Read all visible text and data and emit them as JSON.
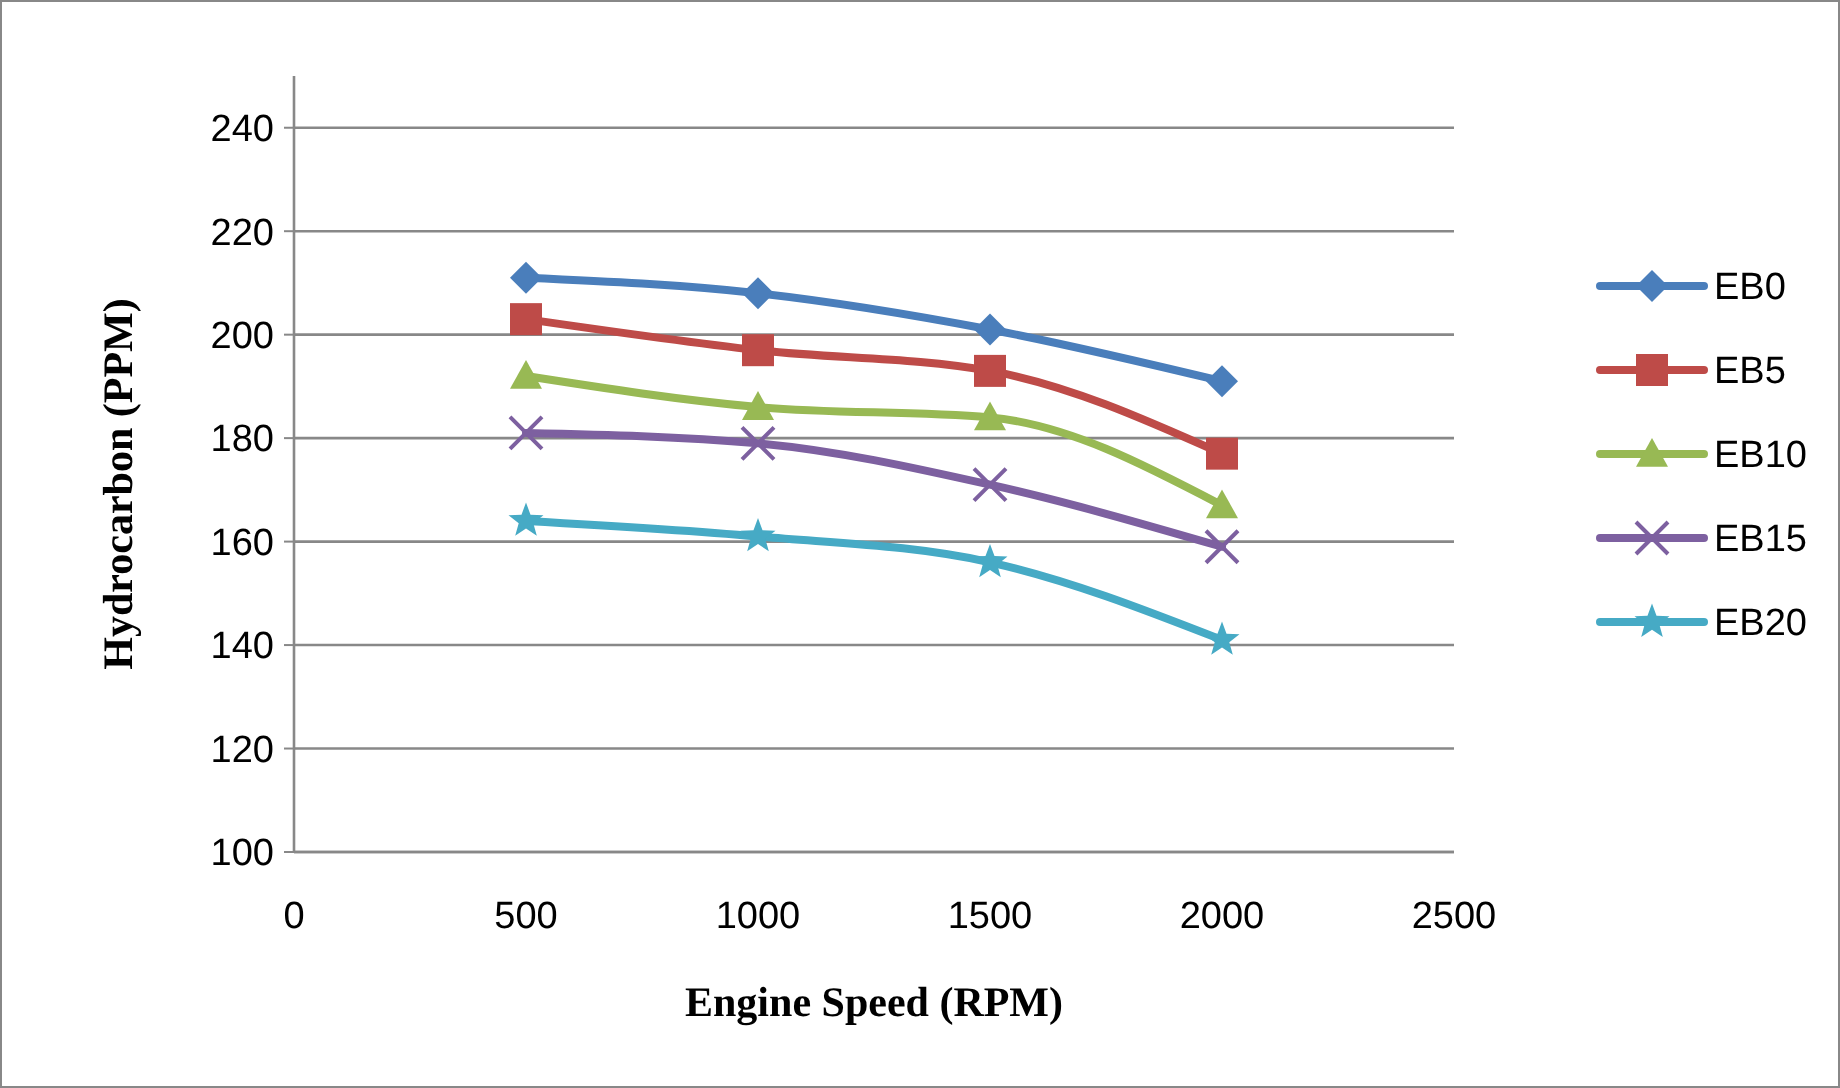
{
  "chart_data": {
    "type": "line",
    "xlabel": "Engine Speed (RPM)",
    "ylabel": "Hydrocarbon (PPM)",
    "x": [
      500,
      1000,
      1500,
      2000
    ],
    "series": [
      {
        "name": "EB0",
        "color": "#4a7ebb",
        "marker": "diamond",
        "values": [
          211,
          208,
          201,
          191
        ]
      },
      {
        "name": "EB5",
        "color": "#be4b48",
        "marker": "square",
        "values": [
          203,
          197,
          193,
          177
        ]
      },
      {
        "name": "EB10",
        "color": "#98b954",
        "marker": "triangle",
        "values": [
          192,
          186,
          184,
          167
        ]
      },
      {
        "name": "EB15",
        "color": "#7d60a0",
        "marker": "cross",
        "values": [
          181,
          179,
          171,
          159
        ]
      },
      {
        "name": "EB20",
        "color": "#46aac5",
        "marker": "star",
        "values": [
          164,
          161,
          156,
          141
        ]
      }
    ],
    "xlim": [
      0,
      2500
    ],
    "xticks": [
      0,
      500,
      1000,
      1500,
      2000,
      2500
    ],
    "ylim": [
      100,
      250
    ],
    "yticks": [
      100,
      120,
      140,
      160,
      180,
      200,
      220,
      240
    ],
    "grid": "y",
    "legend": "right"
  }
}
